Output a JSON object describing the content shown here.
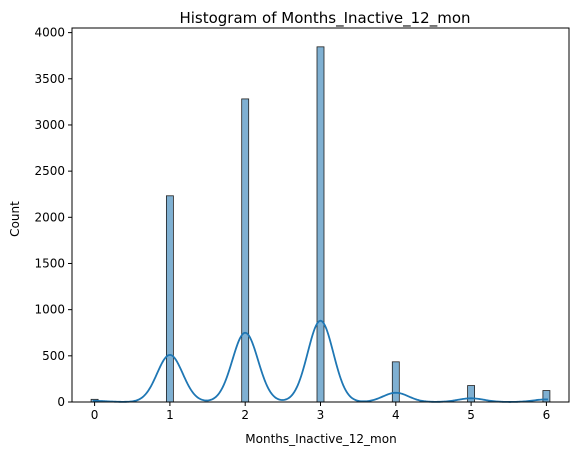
{
  "chart_data": {
    "type": "bar",
    "subtype": "histogram with kde line",
    "title": "Histogram of Months_Inactive_12_mon",
    "xlabel": "Months_Inactive_12_mon",
    "ylabel": "Count",
    "xlim": [
      -0.3,
      6.3
    ],
    "ylim": [
      0,
      4050
    ],
    "x_ticks": [
      0,
      1,
      2,
      3,
      4,
      5,
      6
    ],
    "y_ticks": [
      0,
      500,
      1000,
      1500,
      2000,
      2500,
      3000,
      3500,
      4000
    ],
    "bar_color": "#7fb0d2",
    "bar_edge_color": "#1f1f1f",
    "bars": [
      {
        "x": 0,
        "value": 29
      },
      {
        "x": 1,
        "value": 2233
      },
      {
        "x": 2,
        "value": 3282
      },
      {
        "x": 3,
        "value": 3846
      },
      {
        "x": 4,
        "value": 435
      },
      {
        "x": 5,
        "value": 178
      },
      {
        "x": 6,
        "value": 124
      }
    ],
    "kde": {
      "color": "#1f77b4",
      "peaks": [
        {
          "x": 0,
          "value": 12
        },
        {
          "x": 1,
          "value": 510
        },
        {
          "x": 2,
          "value": 750
        },
        {
          "x": 3,
          "value": 880
        },
        {
          "x": 4,
          "value": 100
        },
        {
          "x": 5,
          "value": 40
        },
        {
          "x": 6,
          "value": 28
        }
      ]
    },
    "grid": false,
    "legend": "none"
  }
}
